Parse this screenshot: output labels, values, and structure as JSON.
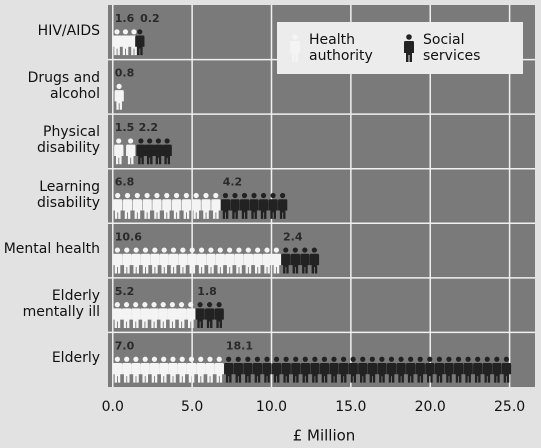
{
  "chart_data": {
    "type": "pictogram_bar",
    "orientation": "horizontal",
    "stacked": true,
    "xlabel": "£ Million",
    "categories": [
      "HIV/AIDS",
      "Drugs and alcohol",
      "Physical disability",
      "Learning disability",
      "Mental health",
      "Elderly mentally ill",
      "Elderly"
    ],
    "series": [
      {
        "name": "Health authority",
        "color": "#f4f4f4",
        "values": [
          1.6,
          0.8,
          1.5,
          6.8,
          10.6,
          5.2,
          7.0
        ],
        "value_labels": [
          "1.6",
          "0.8",
          "1.5",
          "6.8",
          "10.6",
          "5.2",
          "7.0"
        ]
      },
      {
        "name": "Social services",
        "color": "#222222",
        "values": [
          0.2,
          null,
          2.2,
          4.2,
          2.4,
          1.8,
          18.1
        ],
        "value_labels": [
          "0.2",
          null,
          "2.2",
          "4.2",
          "2.4",
          "1.8",
          "18.1"
        ]
      }
    ],
    "xlim": [
      -0.3,
      26.6
    ],
    "xticks": [
      {
        "value": 0,
        "label": "0.0"
      },
      {
        "value": 5,
        "label": "5.0"
      },
      {
        "value": 10,
        "label": "10.0"
      },
      {
        "value": 15,
        "label": "15.0"
      },
      {
        "value": 20,
        "label": "20.0"
      },
      {
        "value": 25,
        "label": "25.0"
      }
    ],
    "grid": true
  }
}
